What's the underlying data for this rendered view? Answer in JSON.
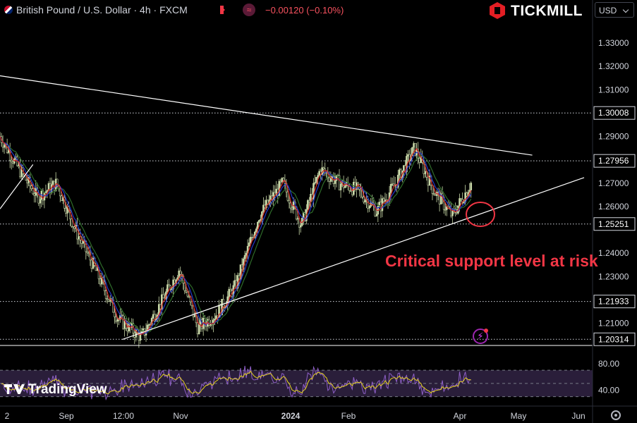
{
  "header": {
    "symbol_text": "British Pound / U.S. Dollar · 4h · FXCM",
    "change_text": "−0.00120 (−0.10%)",
    "broker_logo_text": "TICKMILL",
    "currency": "USD"
  },
  "branding": {
    "tradingview": "TradingView"
  },
  "annotation": {
    "text": "Critical support level at risk"
  },
  "colors": {
    "background": "#000000",
    "candle": "#c9d8a8",
    "ma_fast": "#d42a2a",
    "ma_mid": "#2435c9",
    "ma_slow": "#2e6b2a",
    "trendline": "#ffffff",
    "annotation": "#f23645",
    "rsi_line": "#8e5fc6",
    "rsi_signal": "#e5d21f",
    "rsi_band": "#2a1e3a"
  },
  "chart_data": {
    "type": "line",
    "title": "British Pound / U.S. Dollar · 4h · FXCM",
    "x_ticks": [
      "2",
      "Sep",
      "12:00",
      "Nov",
      "2024",
      "Feb",
      "Apr",
      "May",
      "Jun"
    ],
    "y_ticks": [
      "1.33000",
      "1.32000",
      "1.31000",
      "1.29000",
      "1.27000",
      "1.26000",
      "1.24000",
      "1.23000",
      "1.21000"
    ],
    "ylim": [
      1.2005,
      1.34
    ],
    "price_levels": [
      {
        "label": "1.30008",
        "value": 1.30008,
        "style": "dotted"
      },
      {
        "label": "1.27956",
        "value": 1.27956,
        "style": "dotted"
      },
      {
        "label": "1.25251",
        "value": 1.25251,
        "style": "dotted"
      },
      {
        "label": "1.21933",
        "value": 1.21933,
        "style": "dotted"
      },
      {
        "label": "1.20314",
        "value": 1.20314,
        "style": "dotted"
      }
    ],
    "price_path": {
      "name": "GBPUSD",
      "t": [
        0,
        4,
        8,
        12,
        16,
        20,
        25,
        30,
        34,
        38,
        42,
        46,
        50,
        55,
        60,
        64,
        68,
        72,
        76,
        80,
        84,
        88,
        92,
        96,
        100
      ],
      "y": [
        1.29,
        1.276,
        1.264,
        1.27,
        1.25,
        1.234,
        1.212,
        1.204,
        1.218,
        1.233,
        1.208,
        1.214,
        1.226,
        1.256,
        1.27,
        1.252,
        1.276,
        1.27,
        1.267,
        1.258,
        1.27,
        1.285,
        1.267,
        1.256,
        1.27
      ]
    },
    "trendlines": [
      {
        "name": "resistance",
        "from": {
          "t": 0,
          "y": 1.316
        },
        "to": {
          "t": 113,
          "y": 1.282
        }
      },
      {
        "name": "support",
        "from": {
          "t": 26,
          "y": 1.2031
        },
        "to": {
          "t": 124,
          "y": 1.2724
        }
      },
      {
        "name": "short",
        "from": {
          "t": 0,
          "y": 1.259
        },
        "to": {
          "t": 7,
          "y": 1.278
        }
      }
    ],
    "rsi": {
      "y_ticks": [
        "80.00",
        "40.00"
      ],
      "ylim": [
        20,
        100
      ],
      "band": [
        30,
        70
      ],
      "mid": 50
    }
  }
}
